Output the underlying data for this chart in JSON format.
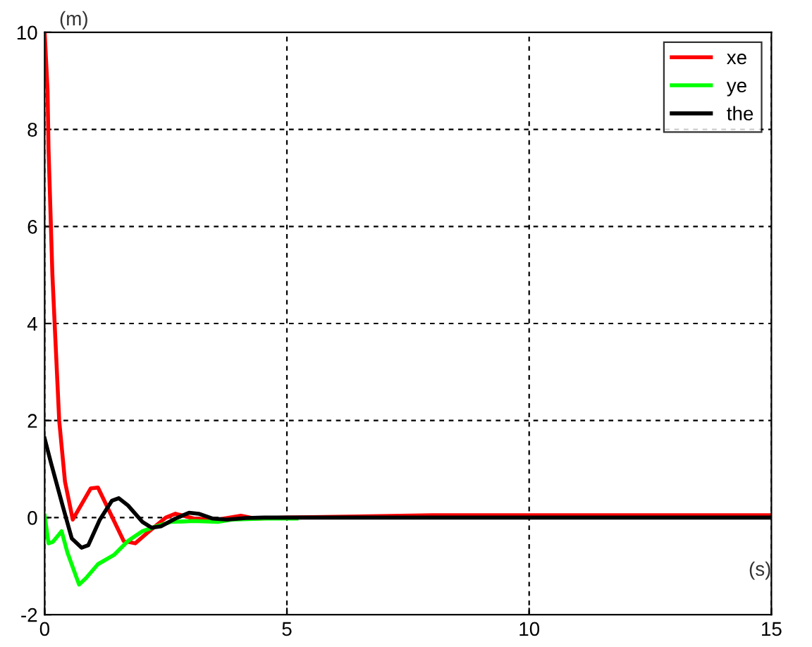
{
  "chart_data": {
    "type": "line",
    "xlabel": "(s)",
    "ylabel": "(m)",
    "xlim": [
      0,
      15
    ],
    "ylim": [
      -2,
      10
    ],
    "xticks": [
      0,
      5,
      10,
      15
    ],
    "yticks": [
      -2,
      0,
      2,
      4,
      6,
      8,
      10
    ],
    "grid": true,
    "legend": "top right",
    "marker": "none",
    "line_style": "solid",
    "series": [
      {
        "name": "xe",
        "color": "#ff0000",
        "x": [
          0,
          0.06,
          0.08,
          0.16,
          0.22,
          0.3,
          0.42,
          0.58,
          0.95,
          1.1,
          1.63,
          1.87,
          2.1,
          2.5,
          2.7,
          3.08,
          3.57,
          4.05,
          4.34,
          5,
          8,
          15
        ],
        "values": [
          10,
          8.8,
          7.6,
          5.0,
          3.7,
          2.0,
          0.74,
          -0.04,
          0.6,
          0.62,
          -0.48,
          -0.53,
          -0.33,
          0.0,
          0.08,
          -0.02,
          -0.04,
          0.04,
          -0.02,
          0,
          0.05,
          0.05
        ]
      },
      {
        "name": "ye",
        "color": "#00ff00",
        "x": [
          0,
          0.08,
          0.17,
          0.35,
          0.47,
          0.71,
          0.85,
          1.1,
          1.43,
          1.72,
          2.02,
          2.3,
          2.6,
          3.08,
          3.57,
          3.86,
          4.53,
          5.2
        ],
        "values": [
          0.04,
          -0.53,
          -0.5,
          -0.28,
          -0.72,
          -1.38,
          -1.25,
          -0.96,
          -0.77,
          -0.48,
          -0.28,
          -0.18,
          -0.09,
          -0.07,
          -0.09,
          -0.04,
          -0.02,
          -0.02
        ]
      },
      {
        "name": "the",
        "color": "#000000",
        "x": [
          0,
          0.13,
          0.37,
          0.56,
          0.76,
          0.9,
          1.14,
          1.39,
          1.53,
          1.72,
          2.02,
          2.21,
          2.4,
          2.7,
          2.98,
          3.18,
          3.47,
          3.76,
          4.15,
          4.53,
          15
        ],
        "values": [
          1.63,
          1.13,
          0.25,
          -0.43,
          -0.62,
          -0.57,
          -0.04,
          0.35,
          0.4,
          0.25,
          -0.09,
          -0.21,
          -0.18,
          -0.02,
          0.1,
          0.08,
          -0.02,
          -0.04,
          -0.01,
          0,
          0
        ]
      }
    ]
  }
}
